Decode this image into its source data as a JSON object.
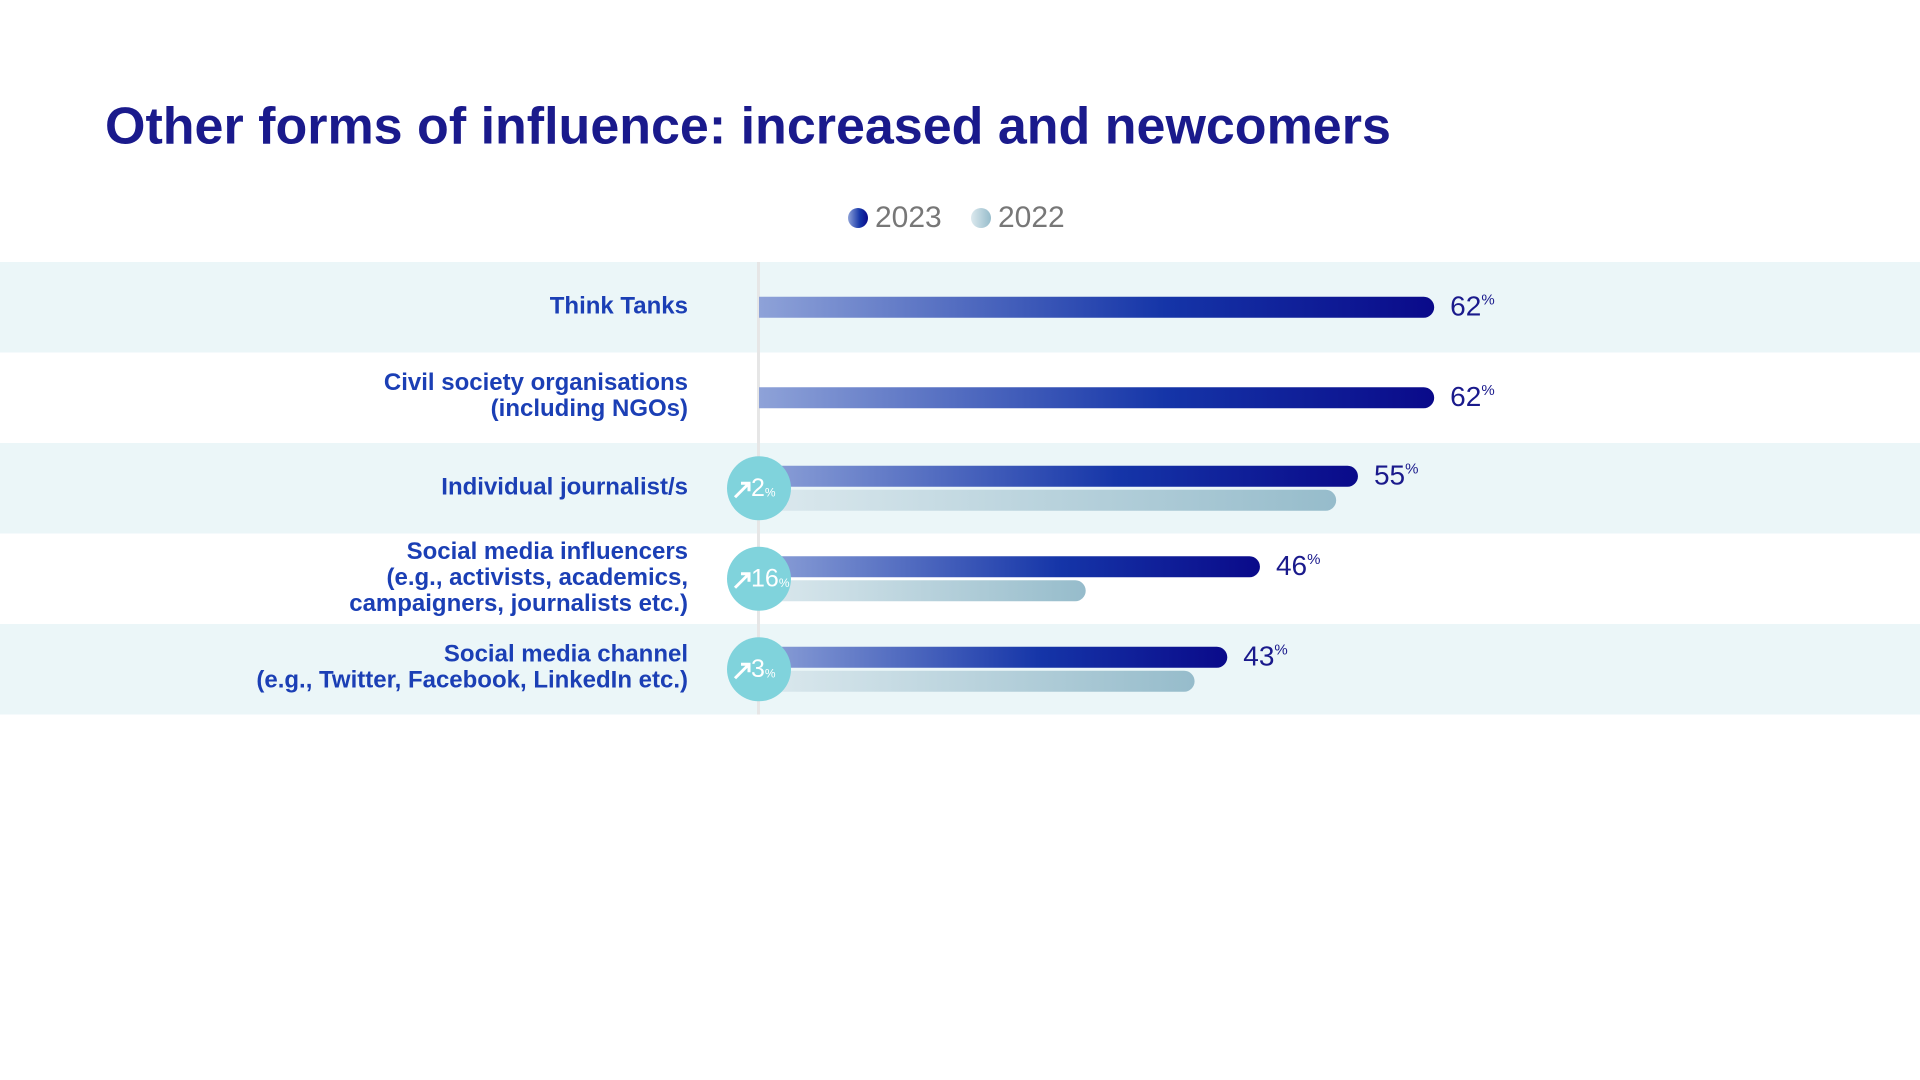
{
  "chart_data": {
    "type": "hbar",
    "title": "Other forms of influence: increased and newcomers",
    "categories": [
      [
        "Think Tanks"
      ],
      [
        "Civil society organisations",
        "(including NGOs)"
      ],
      [
        "Individual journalist/s"
      ],
      [
        "Social media influencers",
        "(e.g., activists, academics,",
        "campaigners, journalists etc.)"
      ],
      [
        "Social media channel",
        "(e.g., Twitter, Facebook, LinkedIn etc.)"
      ]
    ],
    "series": [
      {
        "name": "2023",
        "color": "#0a0a8a",
        "values": [
          62,
          62,
          55,
          46,
          43
        ],
        "value_labels": [
          "62%",
          "62%",
          "55%",
          "46%",
          "43%"
        ]
      },
      {
        "name": "2022",
        "color": "#96bccb",
        "values": [
          null,
          null,
          53,
          30,
          40
        ]
      }
    ],
    "changes": [
      null,
      null,
      2,
      16,
      3
    ],
    "change_labels": [
      null,
      null,
      "2%",
      "16%",
      "3%"
    ],
    "xlim": [
      0,
      100
    ]
  }
}
